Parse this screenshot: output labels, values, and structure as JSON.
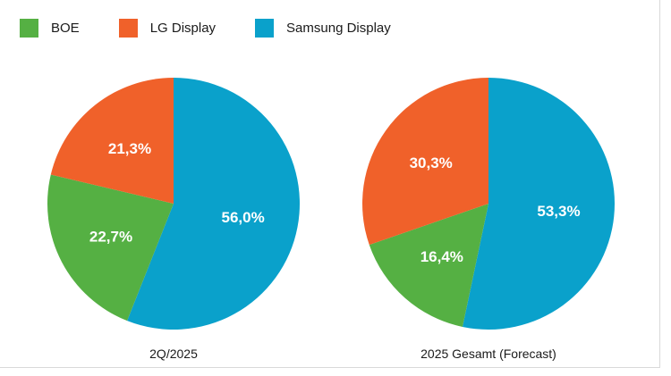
{
  "legend": [
    {
      "label": "BOE",
      "color": "#55b043"
    },
    {
      "label": "LG Display",
      "color": "#f0612a"
    },
    {
      "label": "Samsung Display",
      "color": "#0aa1cb"
    }
  ],
  "chart_data": [
    {
      "type": "pie",
      "title": "2Q/2025",
      "slices": [
        {
          "name": "Samsung Display",
          "value": 56.0,
          "label": "56,0%",
          "color": "#0aa1cb"
        },
        {
          "name": "BOE",
          "value": 22.7,
          "label": "22,7%",
          "color": "#55b043"
        },
        {
          "name": "LG Display",
          "value": 21.3,
          "label": "21,3%",
          "color": "#f0612a"
        }
      ],
      "legend_position": "top-left"
    },
    {
      "type": "pie",
      "title": "2025 Gesamt (Forecast)",
      "slices": [
        {
          "name": "Samsung Display",
          "value": 53.3,
          "label": "53,3%",
          "color": "#0aa1cb"
        },
        {
          "name": "BOE",
          "value": 16.4,
          "label": "16,4%",
          "color": "#55b043"
        },
        {
          "name": "LG Display",
          "value": 30.3,
          "label": "30,3%",
          "color": "#f0612a"
        }
      ],
      "legend_position": "top-left"
    }
  ]
}
